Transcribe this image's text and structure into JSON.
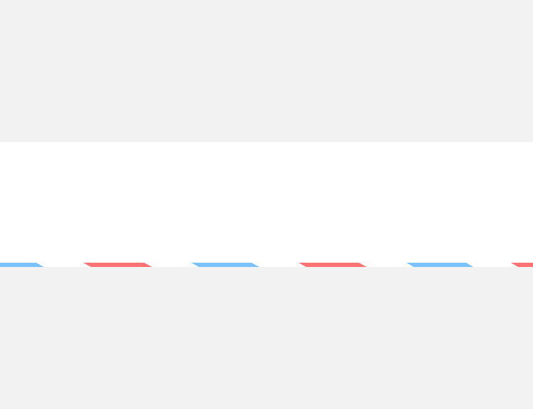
{
  "colors": {
    "page_background": "#f2f2f2",
    "panel_background": "#ffffff",
    "stripe_blue": "#7cc2fa",
    "stripe_red": "#fb7373"
  },
  "border": {
    "pattern": [
      "blue",
      "red",
      "blue",
      "red",
      "blue",
      "red"
    ]
  }
}
